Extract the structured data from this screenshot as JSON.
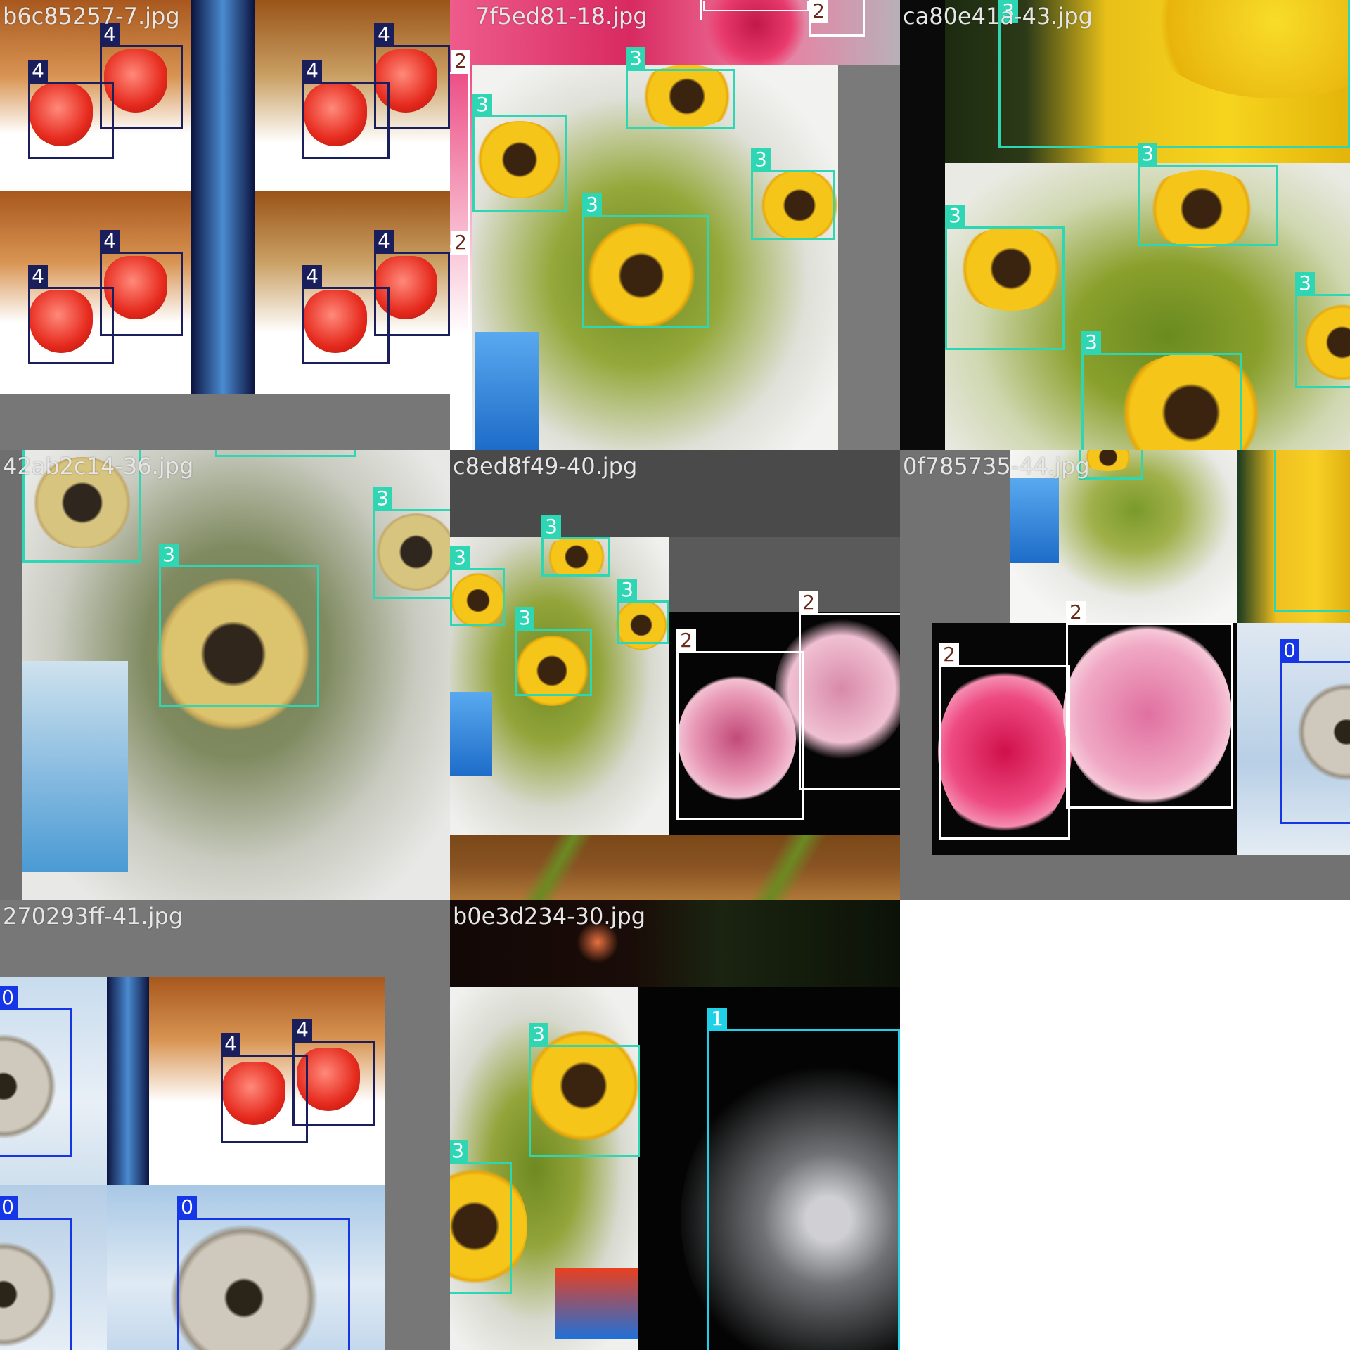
{
  "mosaic": {
    "tiles": [
      {
        "filename": "b6c85257-7.jpg"
      },
      {
        "filename": "7f5ed81-18.jpg"
      },
      {
        "filename": "ca80e41a-43.jpg"
      },
      {
        "filename": "42ab2c14-36.jpg"
      },
      {
        "filename": "c8ed8f49-40.jpg"
      },
      {
        "filename": "0f785735-44.jpg"
      },
      {
        "filename": "270293ff-41.jpg"
      },
      {
        "filename": "b0e3d234-30.jpg"
      }
    ]
  },
  "classes": {
    "c0": "0",
    "c1": "1",
    "c2": "2",
    "c3": "3",
    "c4": "4"
  },
  "colors": {
    "class0": "#1536e6",
    "class1": "#1fd0e6",
    "class2": "#ffffff",
    "class3": "#2fd6b4",
    "class4": "#1a1f5c",
    "filename_text": "#e6e6e6",
    "padding_gray": "#777777"
  }
}
